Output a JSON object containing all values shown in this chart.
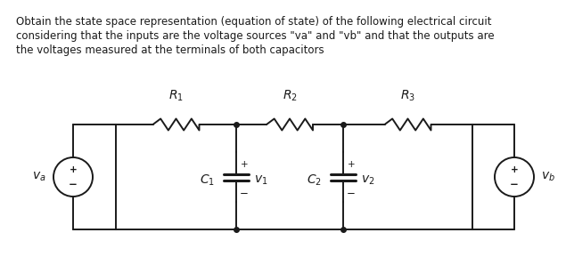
{
  "background_color": "#ffffff",
  "text_lines": [
    "Obtain the state space representation (equation of state) of the following electrical circuit",
    "considering that the inputs are the voltage sources \"va\" and \"vb\" and that the outputs are",
    "the voltages measured at the terminals of both capacitors"
  ],
  "text_fontsize": 8.5,
  "circuit_color": "#1a1a1a",
  "label_R1": "$R_1$",
  "label_R2": "$R_2$",
  "label_R3": "$R_3$",
  "label_C1": "$C_1$",
  "label_C2": "$C_2$",
  "label_v1": "$v_1$",
  "label_v2": "$v_2$",
  "label_va": "$v_a$",
  "label_vb": "$v_b$"
}
